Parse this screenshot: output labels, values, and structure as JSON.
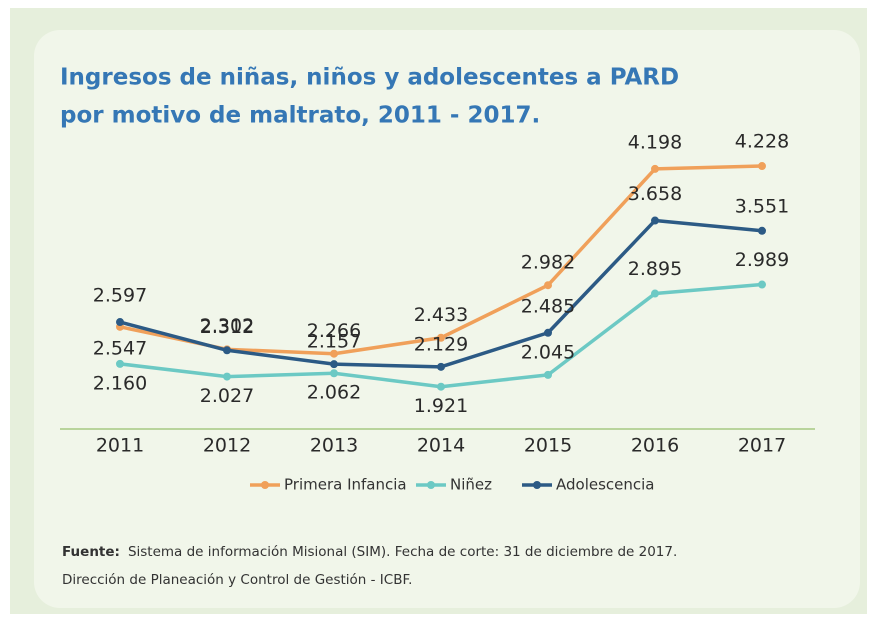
{
  "chart_data": {
    "type": "line",
    "title_lines": [
      "Ingresos de niñas, niños y adolescentes a PARD",
      "por motivo de maltrato, 2011 - 2017."
    ],
    "categories": [
      "2011",
      "2012",
      "2013",
      "2014",
      "2015",
      "2016",
      "2017"
    ],
    "series": [
      {
        "name": "Primera Infancia",
        "color": "#f0a05a",
        "values": [
          2547,
          2312,
          2266,
          2433,
          2982,
          4198,
          4228
        ],
        "value_labels": [
          "2.547",
          "2.312",
          "2.266",
          "2.433",
          "2.982",
          "4.198",
          "4.228"
        ]
      },
      {
        "name": "Niñez",
        "color": "#6cc9c4",
        "values": [
          2160,
          2027,
          2062,
          1921,
          2045,
          2895,
          2989
        ],
        "value_labels": [
          "2.160",
          "2.027",
          "2.062",
          "1.921",
          "2.045",
          "2.895",
          "2.989"
        ]
      },
      {
        "name": "Adolescencia",
        "color": "#2c5a85",
        "values": [
          2597,
          2302,
          2157,
          2129,
          2485,
          3658,
          3551
        ],
        "value_labels": [
          "2.597",
          "2.302",
          "2.157",
          "2.129",
          "2.485",
          "3.658",
          "3.551"
        ]
      }
    ],
    "ylim": [
      1500,
      4500
    ],
    "legend": "bottom",
    "source": {
      "label": "Fuente:",
      "lines": [
        "Sistema de información Misional (SIM). Fecha de corte: 31 de diciembre de 2017.",
        "Dirección de Planeación y Control de Gestión -  ICBF."
      ]
    }
  }
}
